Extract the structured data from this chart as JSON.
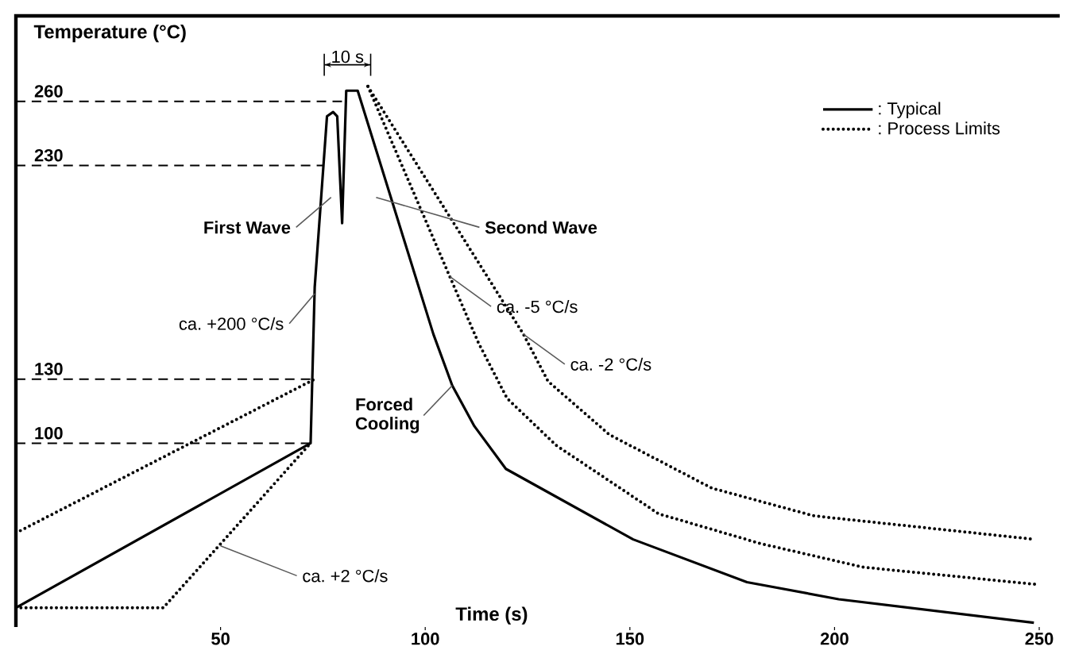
{
  "chart_data": {
    "type": "line",
    "ylabel": "Temperature (°C)",
    "xlabel": "Time (s)",
    "xlim": [
      0,
      250
    ],
    "ylim": [
      14,
      300
    ],
    "xticks": [
      50,
      100,
      150,
      200,
      250
    ],
    "yticks": [
      100,
      130,
      230,
      260
    ],
    "marker": "none",
    "legend": "top right",
    "ref_lines": [
      {
        "axis": "y",
        "value": 260,
        "line_style": "dashed"
      },
      {
        "axis": "y",
        "value": 230,
        "line_style": "dashed"
      },
      {
        "axis": "y",
        "value": 130,
        "line_style": "dashed"
      },
      {
        "axis": "y",
        "value": 100,
        "line_style": "dashed"
      }
    ],
    "series": [
      {
        "name": ": Typical",
        "color": "#000000",
        "line_style": "solid",
        "x": [
          0,
          72,
          73,
          76,
          77.5,
          78.5,
          79.7,
          80.7,
          83.5,
          102,
          106.6,
          112,
          119.7,
          150.8,
          178.6,
          201,
          248.7
        ],
        "values": [
          23,
          100,
          173,
          253,
          255,
          253,
          203,
          265,
          265,
          151,
          127,
          108,
          88,
          55,
          35,
          27,
          16
        ]
      },
      {
        "name": ": Process Limits",
        "color": "#000000",
        "line_style": "dotted",
        "x": [
          0,
          73
        ],
        "values": [
          58,
          130
        ]
      },
      {
        "color": "#000000",
        "line_style": "dotted",
        "x": [
          0,
          36,
          72
        ],
        "values": [
          23,
          23,
          100
        ]
      },
      {
        "color": "#000000",
        "line_style": "dotted",
        "x": [
          86,
          106,
          113,
          120,
          132,
          157,
          182,
          207,
          249
        ],
        "values": [
          267,
          178,
          147,
          121,
          99,
          67,
          53,
          42,
          34
        ]
      },
      {
        "color": "#000000",
        "line_style": "dotted",
        "x": [
          86,
          124,
          130,
          145,
          170,
          195,
          249
        ],
        "values": [
          267,
          151,
          129,
          104,
          79,
          66,
          55
        ]
      }
    ],
    "annotations": [
      "10 s",
      "First Wave",
      "Second Wave",
      {
        "text": "ca. +200 °C/s",
        "x": 73,
        "y": 170
      },
      {
        "text": "ca. +2 °C/s",
        "x": 50,
        "y": 52
      },
      {
        "text": "Forced Cooling",
        "x": 106.6,
        "y": 127
      },
      {
        "text": "ca. -5 °C/s",
        "x": 106,
        "y": 178
      },
      {
        "text": "ca. -2 °C/s",
        "x": 124,
        "y": 151
      }
    ]
  }
}
